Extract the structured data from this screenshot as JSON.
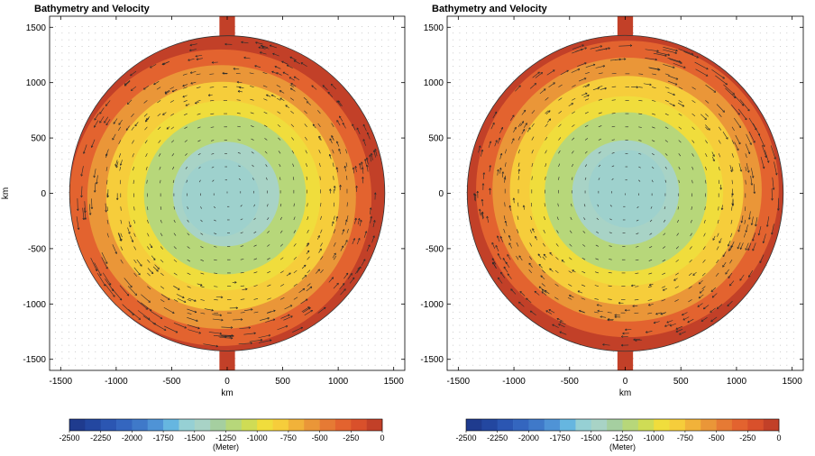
{
  "chart_data": [
    {
      "type": "contour",
      "title": "Bathymetry and Velocity",
      "xlabel": "km",
      "ylabel": "km",
      "xlim": [
        -1600,
        1600
      ],
      "ylim": [
        -1600,
        1600
      ],
      "xticks": [
        -1500,
        -1000,
        -500,
        0,
        500,
        1000,
        1500
      ],
      "yticks": [
        1500,
        1000,
        500,
        0,
        -500,
        -1000,
        -1500
      ],
      "basin_radius_km": 1420,
      "bowl_center_km": [
        -60,
        -40
      ],
      "contour_levels": [
        -1500,
        -1250,
        -1000,
        -750,
        -500,
        -250,
        0
      ],
      "level_radii_km": [
        480,
        730,
        870,
        1050,
        1210,
        1360
      ],
      "velocity_boundary_current": "strongest along western and southern rim",
      "colorbar": {
        "label": "(Meter)",
        "min": -2500,
        "max": 0,
        "step": 125,
        "ticks": [
          -2500,
          -2250,
          -2000,
          -1750,
          -1500,
          -1250,
          -1000,
          -750,
          -500,
          -250,
          0
        ]
      }
    },
    {
      "type": "contour",
      "title": "Bathymetry and Velocity",
      "xlabel": "km",
      "ylabel": "",
      "xlim": [
        -1600,
        1600
      ],
      "ylim": [
        -1600,
        1600
      ],
      "xticks": [
        -1500,
        -1000,
        -500,
        0,
        500,
        1000,
        1500
      ],
      "yticks": [
        1500,
        1000,
        500,
        0,
        -500,
        -1000,
        -1500
      ],
      "basin_radius_km": 1420,
      "bowl_center_km": [
        20,
        40
      ],
      "contour_levels": [
        -1500,
        -1250,
        -1000,
        -750,
        -500,
        -250,
        0
      ],
      "level_radii_km": [
        480,
        730,
        870,
        1050,
        1210,
        1360
      ],
      "velocity_boundary_current": "strongest along northern and eastern rim",
      "colorbar": {
        "label": "(Meter)",
        "min": -2500,
        "max": 0,
        "step": 125,
        "ticks": [
          -2500,
          -2250,
          -2000,
          -1750,
          -1500,
          -1250,
          -1000,
          -750,
          -500,
          -250,
          0
        ]
      }
    }
  ],
  "colors": {
    "palette": [
      "#1f3b8e",
      "#2347a0",
      "#2b56b2",
      "#3466bf",
      "#3f79c9",
      "#4f93d6",
      "#66b6e0",
      "#96d0d4",
      "#a8d3c6",
      "#a5cfa0",
      "#b7d77a",
      "#cfdc55",
      "#f0dd3c",
      "#f6cd3b",
      "#f1b23a",
      "#ea9638",
      "#e67a34",
      "#e3632f",
      "#d9502b",
      "#c24028",
      "#8a2a1a"
    ],
    "outline": "#333333",
    "arrow": "#2a2a2a",
    "dot": "#9a9a9a"
  }
}
